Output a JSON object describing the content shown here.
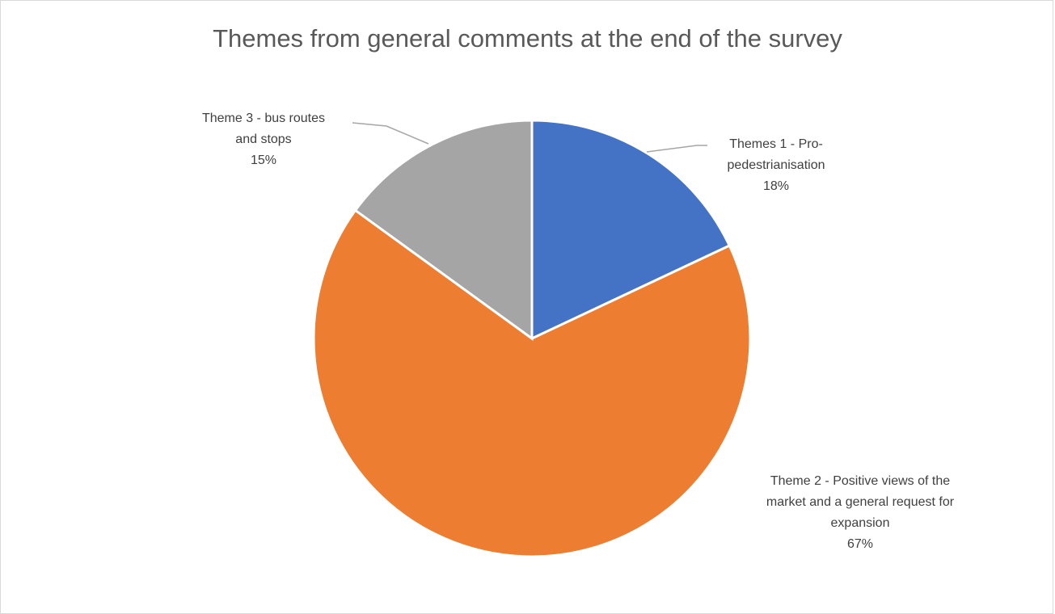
{
  "chart_data": {
    "type": "pie",
    "title": "Themes from general comments at the end of the survey",
    "slices": [
      {
        "name_lines": [
          "Themes 1 - Pro-",
          "pedestrianisation"
        ],
        "value": 18,
        "label": "18%",
        "color": "#4472C4"
      },
      {
        "name_lines": [
          "Theme 2 - Positive views of the",
          "market and a general request for",
          "expansion"
        ],
        "value": 67,
        "label": "67%",
        "color": "#ED7D31"
      },
      {
        "name_lines": [
          "Theme 3 - bus routes",
          "and stops"
        ],
        "value": 15,
        "label": "15%",
        "color": "#A5A5A5"
      }
    ],
    "slice_border_color": "#ffffff",
    "leader_line_color": "#a6a6a6"
  }
}
